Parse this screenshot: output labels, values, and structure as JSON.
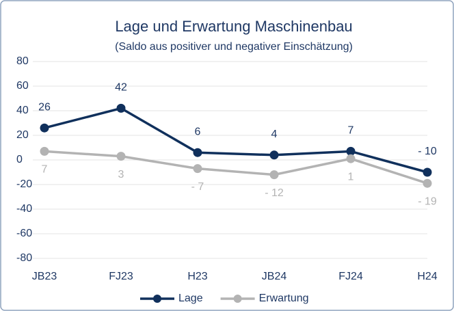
{
  "chart_data": {
    "type": "line",
    "title": "Lage und Erwartung Maschinenbau",
    "subtitle": "(Saldo aus positiver und negativer Einschätzung)",
    "categories": [
      "JB23",
      "FJ23",
      "H23",
      "JB24",
      "FJ24",
      "H24"
    ],
    "series": [
      {
        "name": "Lage",
        "color": "#10305c",
        "values": [
          26,
          42,
          6,
          4,
          7,
          -10
        ],
        "value_labels": [
          "26",
          "42",
          "6",
          "4",
          "7",
          "- 10"
        ]
      },
      {
        "name": "Erwartung",
        "color": "#b3b3b3",
        "values": [
          7,
          3,
          -7,
          -12,
          1,
          -19
        ],
        "value_labels": [
          "7",
          "3",
          "- 7",
          "- 12",
          "1",
          "- 19"
        ]
      }
    ],
    "ylim": [
      -80,
      80
    ],
    "yticks": [
      -80,
      -60,
      -40,
      -20,
      0,
      20,
      40,
      60,
      80
    ],
    "grid": true,
    "legend": "bottom"
  }
}
